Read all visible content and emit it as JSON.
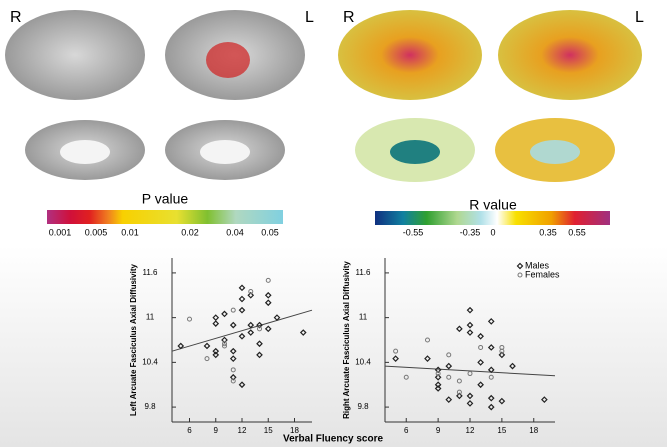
{
  "brain_labels": [
    "R",
    "L",
    "R",
    "L"
  ],
  "p_scale": {
    "title": "P value",
    "labels": [
      "0.001",
      "0.005",
      "0.01",
      "0.02",
      "0.04",
      "0.05"
    ]
  },
  "r_scale": {
    "title": "R value",
    "labels": [
      "-0.55",
      "-0.35",
      "0",
      "0.35",
      "0.55"
    ]
  },
  "shared_xlabel": "Verbal Fluency score",
  "chart_data": [
    {
      "type": "scatter",
      "ylabel": "Left Arcuate Fasciculus Axial Diffusivity",
      "xlim": [
        4,
        20
      ],
      "xticks": [
        6,
        9,
        12,
        15,
        18
      ],
      "ylim": [
        9.6,
        11.8
      ],
      "yticks": [
        9.8,
        10.4,
        11.0,
        11.6
      ],
      "series": [
        {
          "marker": "diamond",
          "x": [
            5,
            8,
            9,
            9,
            9,
            9,
            10,
            11,
            11,
            11,
            12,
            12,
            12,
            12,
            13,
            13,
            13,
            14,
            14,
            14,
            15,
            15,
            15,
            16,
            19,
            11,
            10,
            12
          ],
          "values": [
            10.62,
            10.62,
            10.5,
            10.55,
            10.92,
            11.0,
            10.7,
            10.55,
            10.45,
            10.2,
            10.1,
            10.75,
            11.25,
            11.4,
            10.8,
            10.9,
            11.3,
            10.5,
            10.65,
            10.9,
            11.2,
            11.3,
            10.85,
            11.0,
            10.8,
            10.9,
            11.05,
            11.1
          ]
        },
        {
          "marker": "circle",
          "x": [
            6,
            8,
            10,
            11,
            11,
            11,
            13,
            14,
            15,
            10
          ],
          "values": [
            10.98,
            10.45,
            10.65,
            10.3,
            10.15,
            11.1,
            11.35,
            10.85,
            11.5,
            10.62
          ]
        }
      ],
      "trend": {
        "x": [
          4,
          20
        ],
        "values": [
          10.55,
          11.1
        ]
      }
    },
    {
      "type": "scatter",
      "ylabel": "Right Arcuate Fasciculus Axial Diffusivity",
      "xlim": [
        4,
        20
      ],
      "xticks": [
        6,
        9,
        12,
        15,
        18
      ],
      "ylim": [
        9.6,
        11.8
      ],
      "yticks": [
        9.8,
        10.4,
        11.0,
        11.6
      ],
      "series": [
        {
          "name": "Males",
          "marker": "diamond",
          "x": [
            5,
            8,
            9,
            9,
            9,
            9,
            10,
            11,
            12,
            12,
            12,
            12,
            12,
            13,
            13,
            14,
            14,
            14,
            14,
            14,
            15,
            15,
            16,
            19,
            11,
            13,
            10
          ],
          "values": [
            10.45,
            10.45,
            10.3,
            10.2,
            10.1,
            10.05,
            10.35,
            9.95,
            9.85,
            9.95,
            10.8,
            11.1,
            10.9,
            10.1,
            10.75,
            10.3,
            10.6,
            10.95,
            9.92,
            9.8,
            9.88,
            10.5,
            10.35,
            9.9,
            10.85,
            10.4,
            9.9
          ]
        },
        {
          "name": "Females",
          "marker": "circle",
          "x": [
            5,
            6,
            8,
            9,
            10,
            10,
            11,
            12,
            13,
            14,
            15,
            15,
            11
          ],
          "values": [
            10.55,
            10.2,
            10.7,
            10.25,
            10.2,
            10.5,
            10.15,
            10.25,
            10.6,
            10.2,
            10.6,
            10.55,
            10.0
          ]
        }
      ],
      "trend": {
        "x": [
          4,
          20
        ],
        "values": [
          10.35,
          10.22
        ]
      }
    }
  ]
}
